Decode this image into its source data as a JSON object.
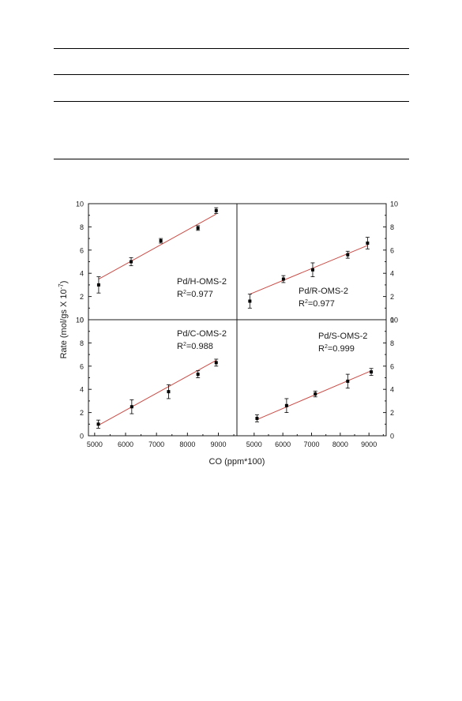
{
  "chart_data": {
    "type": "scatter",
    "shared_x_axis_label": "CO (ppm*100)",
    "shared_y_axis_label": "Rate (mol/gs X 10",
    "shared_y_axis_exponent": "-7",
    "shared_y_axis_label_end": ")",
    "grid": false,
    "panels": [
      {
        "id": "H",
        "position": "top-left",
        "label": "Pd/H-OMS-2",
        "r2_prefix": "R",
        "r2_exp": "2",
        "r2_value": "=0.977",
        "xlim": [
          4800,
          9600
        ],
        "ylim": [
          0,
          10
        ],
        "x_ticks": [],
        "y_ticks": [
          "0",
          "2",
          "4",
          "6",
          "8",
          "10"
        ],
        "y_tick_side": "left",
        "points": [
          {
            "x": 5130,
            "y": 3.0,
            "err": 0.7
          },
          {
            "x": 6180,
            "y": 5.0,
            "err": 0.35
          },
          {
            "x": 7140,
            "y": 6.8,
            "err": 0.2
          },
          {
            "x": 8340,
            "y": 7.9,
            "err": 0.2
          },
          {
            "x": 8930,
            "y": 9.4,
            "err": 0.25
          }
        ],
        "fit_line": {
          "x": [
            5130,
            8930
          ],
          "y": [
            3.5,
            9.1
          ]
        }
      },
      {
        "id": "R",
        "position": "top-right",
        "label": "Pd/R-OMS-2",
        "r2_prefix": "R",
        "r2_exp": "2",
        "r2_value": "=0.977",
        "xlim": [
          4400,
          9600
        ],
        "ylim": [
          0,
          10
        ],
        "x_ticks": [],
        "y_ticks": [
          "0",
          "2",
          "4",
          "6",
          "8",
          "10"
        ],
        "y_tick_side": "right",
        "points": [
          {
            "x": 4850,
            "y": 1.6,
            "err": 0.6
          },
          {
            "x": 6020,
            "y": 3.5,
            "err": 0.3
          },
          {
            "x": 7040,
            "y": 4.3,
            "err": 0.6
          },
          {
            "x": 8260,
            "y": 5.6,
            "err": 0.3
          },
          {
            "x": 8950,
            "y": 6.6,
            "err": 0.5
          }
        ],
        "fit_line": {
          "x": [
            4850,
            8950
          ],
          "y": [
            2.2,
            6.4
          ]
        }
      },
      {
        "id": "C",
        "position": "bottom-left",
        "label": "Pd/C-OMS-2",
        "r2_prefix": "R",
        "r2_exp": "2",
        "r2_value": "=0.988",
        "xlim": [
          4800,
          9600
        ],
        "ylim": [
          0,
          10
        ],
        "x_ticks": [
          "5000",
          "6000",
          "7000",
          "8000",
          "9000"
        ],
        "y_ticks": [
          "0",
          "2",
          "4",
          "6",
          "8",
          "10"
        ],
        "y_tick_side": "left",
        "points": [
          {
            "x": 5120,
            "y": 1.0,
            "err": 0.35
          },
          {
            "x": 6200,
            "y": 2.5,
            "err": 0.6
          },
          {
            "x": 7390,
            "y": 3.8,
            "err": 0.6
          },
          {
            "x": 8340,
            "y": 5.3,
            "err": 0.3
          },
          {
            "x": 8930,
            "y": 6.3,
            "err": 0.3
          }
        ],
        "fit_line": {
          "x": [
            5120,
            8930
          ],
          "y": [
            0.9,
            6.5
          ]
        }
      },
      {
        "id": "S",
        "position": "bottom-right",
        "label": "Pd/S-OMS-2",
        "r2_prefix": "R",
        "r2_exp": "2",
        "r2_value": "=0.999",
        "xlim": [
          4400,
          9600
        ],
        "ylim": [
          0,
          10
        ],
        "x_ticks": [
          "5000",
          "6000",
          "7000",
          "8000",
          "9000"
        ],
        "y_ticks": [
          "0",
          "2",
          "4",
          "6",
          "8",
          "10"
        ],
        "y_tick_side": "right",
        "points": [
          {
            "x": 5100,
            "y": 1.5,
            "err": 0.3
          },
          {
            "x": 6130,
            "y": 2.6,
            "err": 0.6
          },
          {
            "x": 7130,
            "y": 3.6,
            "err": 0.25
          },
          {
            "x": 8260,
            "y": 4.7,
            "err": 0.6
          },
          {
            "x": 9080,
            "y": 5.5,
            "err": 0.3
          }
        ],
        "fit_line": {
          "x": [
            5100,
            9080
          ],
          "y": [
            1.4,
            5.6
          ]
        }
      }
    ],
    "colors": {
      "fit_line": "#c94a44",
      "marker": "#000000",
      "axes": "#1a1a1a"
    }
  }
}
